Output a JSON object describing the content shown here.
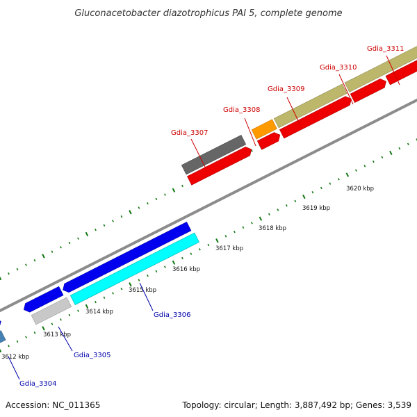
{
  "title": "Gluconacetobacter diazotrophicus PAI 5, complete genome",
  "accession": "Accession: NC_011365",
  "topology": "Topology: circular; Length: 3,887,492 bp; Genes: 3,539",
  "colors": {
    "forward_label": "#cc0000",
    "reverse_label": "#0000aa",
    "backbone": "#8c8c8c",
    "ticks": "#117711"
  },
  "kbp_labels": [
    "3612 kbp",
    "3613 kbp",
    "3614 kbp",
    "3615 kbp",
    "3616 kbp",
    "3617 kbp",
    "3618 kbp",
    "3619 kbp",
    "3620 kbp"
  ],
  "genes": [
    {
      "label": "Gdia_3304",
      "strand": "reverse"
    },
    {
      "label": "Gdia_3305",
      "strand": "reverse"
    },
    {
      "label": "Gdia_3306",
      "strand": "reverse"
    },
    {
      "label": "Gdia_3307",
      "strand": "forward"
    },
    {
      "label": "Gdia_3308",
      "strand": "forward"
    },
    {
      "label": "Gdia_3309",
      "strand": "forward"
    },
    {
      "label": "Gdia_3310",
      "strand": "forward"
    },
    {
      "label": "Gdia_3311",
      "strand": "forward"
    }
  ]
}
